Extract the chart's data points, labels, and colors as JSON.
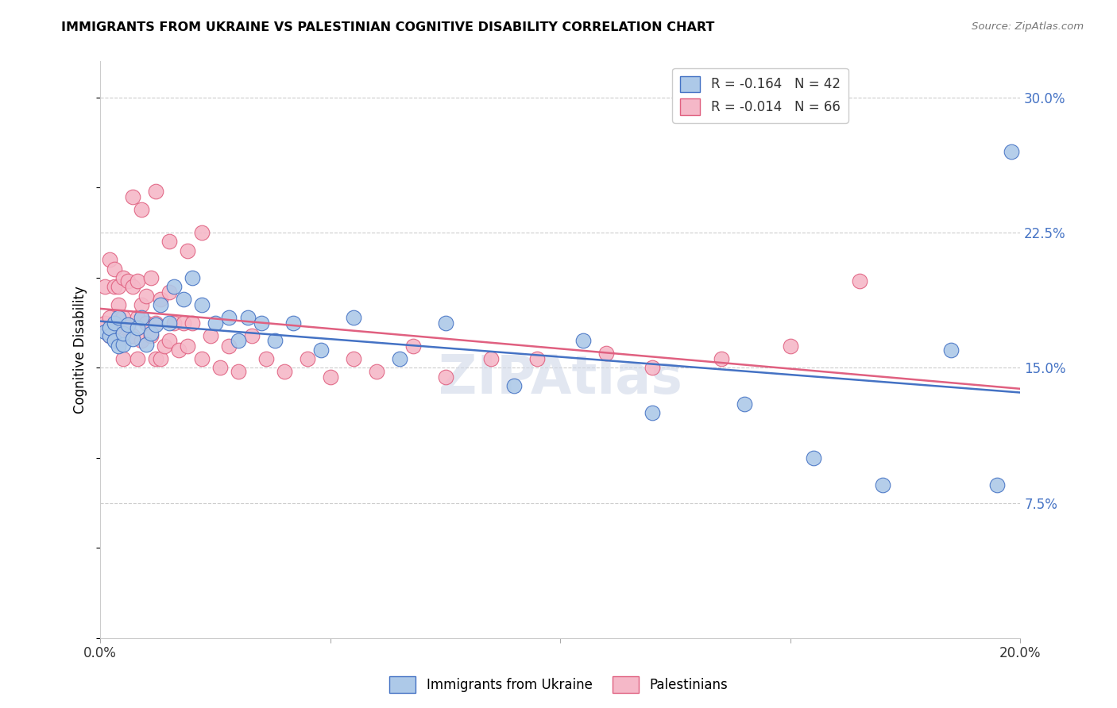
{
  "title": "IMMIGRANTS FROM UKRAINE VS PALESTINIAN COGNITIVE DISABILITY CORRELATION CHART",
  "source": "Source: ZipAtlas.com",
  "ylabel": "Cognitive Disability",
  "xlim": [
    0.0,
    0.2
  ],
  "ylim": [
    0.0,
    0.32
  ],
  "yticks": [
    0.075,
    0.15,
    0.225,
    0.3
  ],
  "ytick_labels": [
    "7.5%",
    "15.0%",
    "22.5%",
    "30.0%"
  ],
  "xticks": [
    0.0,
    0.05,
    0.1,
    0.15,
    0.2
  ],
  "xtick_labels": [
    "0.0%",
    "",
    "",
    "",
    "20.0%"
  ],
  "legend_r_ukraine": "-0.164",
  "legend_n_ukraine": "42",
  "legend_r_palestinians": "-0.014",
  "legend_n_palestinians": "66",
  "ukraine_color": "#adc9e8",
  "ukraine_line_color": "#4472c4",
  "palestinians_color": "#f5b8c8",
  "palestinians_line_color": "#e06080",
  "watermark": "ZIPAtlas",
  "ukraine_x": [
    0.001,
    0.002,
    0.002,
    0.003,
    0.003,
    0.004,
    0.004,
    0.005,
    0.005,
    0.006,
    0.007,
    0.008,
    0.009,
    0.01,
    0.011,
    0.012,
    0.013,
    0.015,
    0.016,
    0.018,
    0.02,
    0.022,
    0.025,
    0.028,
    0.03,
    0.032,
    0.035,
    0.038,
    0.042,
    0.048,
    0.055,
    0.065,
    0.075,
    0.09,
    0.105,
    0.12,
    0.14,
    0.155,
    0.17,
    0.185,
    0.195,
    0.198
  ],
  "ukraine_y": [
    0.17,
    0.168,
    0.172,
    0.165,
    0.175,
    0.162,
    0.178,
    0.163,
    0.169,
    0.174,
    0.166,
    0.172,
    0.178,
    0.163,
    0.169,
    0.174,
    0.185,
    0.175,
    0.195,
    0.188,
    0.2,
    0.185,
    0.175,
    0.178,
    0.165,
    0.178,
    0.175,
    0.165,
    0.175,
    0.16,
    0.178,
    0.155,
    0.175,
    0.14,
    0.165,
    0.125,
    0.13,
    0.1,
    0.085,
    0.16,
    0.085,
    0.27
  ],
  "palestinians_x": [
    0.001,
    0.001,
    0.002,
    0.002,
    0.002,
    0.003,
    0.003,
    0.003,
    0.004,
    0.004,
    0.004,
    0.005,
    0.005,
    0.005,
    0.006,
    0.006,
    0.007,
    0.007,
    0.008,
    0.008,
    0.008,
    0.009,
    0.009,
    0.01,
    0.01,
    0.011,
    0.011,
    0.012,
    0.012,
    0.013,
    0.013,
    0.014,
    0.015,
    0.015,
    0.016,
    0.017,
    0.018,
    0.019,
    0.02,
    0.022,
    0.024,
    0.026,
    0.028,
    0.03,
    0.033,
    0.036,
    0.04,
    0.045,
    0.05,
    0.055,
    0.06,
    0.068,
    0.075,
    0.085,
    0.095,
    0.11,
    0.12,
    0.135,
    0.15,
    0.165,
    0.007,
    0.009,
    0.012,
    0.015,
    0.019,
    0.022
  ],
  "palestinians_y": [
    0.195,
    0.175,
    0.21,
    0.178,
    0.168,
    0.205,
    0.195,
    0.172,
    0.195,
    0.185,
    0.165,
    0.2,
    0.178,
    0.155,
    0.198,
    0.172,
    0.195,
    0.168,
    0.198,
    0.178,
    0.155,
    0.185,
    0.165,
    0.19,
    0.175,
    0.2,
    0.168,
    0.175,
    0.155,
    0.188,
    0.155,
    0.162,
    0.192,
    0.165,
    0.175,
    0.16,
    0.175,
    0.162,
    0.175,
    0.155,
    0.168,
    0.15,
    0.162,
    0.148,
    0.168,
    0.155,
    0.148,
    0.155,
    0.145,
    0.155,
    0.148,
    0.162,
    0.145,
    0.155,
    0.155,
    0.158,
    0.15,
    0.155,
    0.162,
    0.198,
    0.245,
    0.238,
    0.248,
    0.22,
    0.215,
    0.225
  ]
}
